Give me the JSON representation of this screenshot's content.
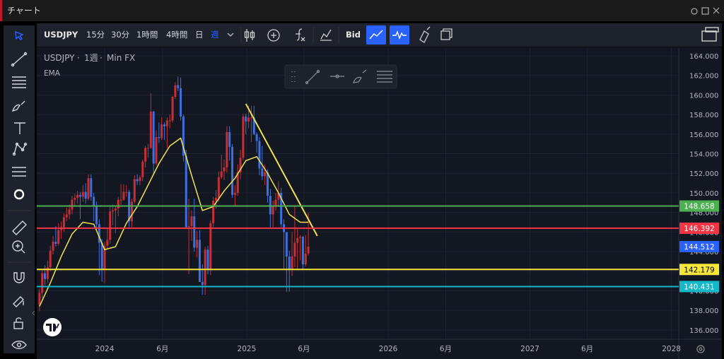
{
  "window": {
    "title": "チャート"
  },
  "toolbar": {
    "symbol": "USDJPY",
    "intervals": [
      "15分",
      "30分",
      "1時間",
      "4時間",
      "日",
      "週"
    ],
    "price_type": "Bid"
  },
  "chart_data": {
    "type": "candlestick",
    "symbol": "USDJPY",
    "interval": "1週",
    "source": "Min FX",
    "up_color": "#c62f36",
    "down_color": "#3d6fe0",
    "x": [
      -24,
      -23,
      -22,
      -21,
      -20,
      -19,
      -18,
      -17,
      -16,
      -15,
      -14,
      -13,
      -12,
      -11,
      -10,
      -9,
      -8,
      -7,
      -6,
      -5,
      -4,
      -3,
      -2,
      -1,
      0,
      1,
      2,
      3,
      4,
      5,
      6,
      7,
      8,
      9,
      10,
      11,
      12,
      13,
      14,
      15,
      16,
      17,
      18,
      19,
      20,
      21,
      22,
      23,
      24,
      25,
      26,
      27,
      28,
      29,
      30,
      31,
      32,
      33,
      34,
      35,
      36,
      37,
      38,
      39,
      40,
      41,
      42,
      43,
      44,
      45,
      46,
      47,
      48,
      49,
      50,
      51,
      52,
      53,
      54,
      55,
      56,
      57,
      58,
      59,
      60,
      61,
      62,
      63,
      64,
      65,
      66,
      67,
      68,
      69,
      70,
      71,
      72,
      73,
      74,
      75
    ],
    "candles": [
      [
        138.6,
        140.2,
        137.9,
        139.8
      ],
      [
        139.8,
        142.1,
        139.2,
        141.8
      ],
      [
        141.8,
        142.6,
        140.6,
        141.2
      ],
      [
        141.2,
        143.1,
        140.8,
        142.4
      ],
      [
        142.4,
        144.6,
        142.0,
        144.1
      ],
      [
        144.1,
        145.6,
        143.7,
        145.0
      ],
      [
        145.0,
        146.6,
        144.5,
        144.8
      ],
      [
        144.8,
        146.9,
        144.6,
        146.2
      ],
      [
        146.2,
        147.1,
        145.3,
        146.5
      ],
      [
        146.5,
        147.9,
        146.0,
        147.5
      ],
      [
        147.5,
        148.5,
        147.1,
        147.8
      ],
      [
        147.8,
        148.8,
        147.3,
        148.3
      ],
      [
        148.3,
        149.7,
        147.8,
        149.3
      ],
      [
        149.3,
        149.9,
        148.6,
        149.5
      ],
      [
        149.5,
        150.2,
        148.9,
        149.8
      ],
      [
        149.8,
        150.1,
        147.3,
        149.6
      ],
      [
        149.6,
        150.8,
        149.1,
        150.1
      ],
      [
        150.1,
        151.0,
        148.9,
        149.4
      ],
      [
        149.4,
        151.9,
        149.2,
        151.5
      ],
      [
        151.5,
        151.9,
        149.2,
        149.6
      ],
      [
        149.6,
        150.0,
        147.1,
        148.7
      ],
      [
        148.7,
        149.1,
        146.2,
        146.8
      ],
      [
        146.8,
        147.3,
        141.6,
        144.9
      ],
      [
        144.9,
        145.3,
        140.9,
        142.2
      ],
      [
        142.2,
        145.0,
        140.8,
        144.6
      ],
      [
        144.6,
        146.4,
        144.2,
        145.2
      ],
      [
        145.2,
        148.6,
        144.8,
        148.1
      ],
      [
        148.1,
        148.8,
        146.7,
        148.2
      ],
      [
        148.2,
        148.7,
        145.9,
        148.4
      ],
      [
        148.4,
        149.6,
        147.6,
        149.3
      ],
      [
        149.3,
        150.9,
        148.8,
        149.3
      ],
      [
        149.3,
        150.9,
        149.2,
        150.1
      ],
      [
        150.1,
        150.8,
        149.6,
        150.1
      ],
      [
        150.1,
        150.3,
        146.5,
        147.1
      ],
      [
        147.1,
        149.4,
        146.5,
        149.1
      ],
      [
        149.1,
        151.8,
        148.9,
        151.4
      ],
      [
        151.4,
        151.9,
        150.8,
        151.2
      ],
      [
        151.2,
        151.8,
        150.8,
        151.6
      ],
      [
        151.6,
        153.4,
        151.2,
        153.2
      ],
      [
        153.2,
        154.8,
        152.6,
        154.6
      ],
      [
        154.6,
        155.0,
        153.6,
        154.6
      ],
      [
        154.6,
        160.2,
        154.5,
        158.3
      ],
      [
        158.3,
        158.4,
        151.9,
        153.0
      ],
      [
        153.0,
        156.4,
        152.8,
        155.7
      ],
      [
        155.7,
        157.2,
        155.1,
        155.6
      ],
      [
        155.6,
        157.7,
        155.4,
        157.0
      ],
      [
        157.0,
        157.2,
        155.4,
        156.8
      ],
      [
        156.8,
        157.7,
        154.6,
        157.4
      ],
      [
        157.4,
        158.0,
        156.6,
        157.4
      ],
      [
        157.4,
        159.9,
        157.2,
        159.8
      ],
      [
        159.8,
        161.3,
        159.6,
        161.0
      ],
      [
        161.0,
        161.9,
        160.4,
        160.7
      ],
      [
        160.7,
        161.8,
        157.4,
        157.8
      ],
      [
        157.8,
        158.0,
        153.2,
        153.8
      ],
      [
        153.8,
        154.4,
        146.4,
        146.5
      ],
      [
        146.5,
        149.4,
        141.7,
        146.6
      ],
      [
        146.6,
        148.2,
        145.1,
        147.6
      ],
      [
        147.6,
        149.4,
        144.0,
        144.4
      ],
      [
        144.4,
        146.1,
        143.4,
        145.2
      ],
      [
        145.2,
        146.2,
        140.9,
        140.9
      ],
      [
        140.9,
        142.7,
        139.6,
        140.6
      ],
      [
        140.6,
        144.5,
        139.6,
        144.2
      ],
      [
        144.2,
        144.6,
        141.7,
        142.2
      ],
      [
        142.2,
        147.2,
        141.6,
        146.9
      ],
      [
        146.9,
        149.6,
        146.5,
        149.2
      ],
      [
        149.2,
        150.3,
        148.4,
        149.5
      ],
      [
        149.5,
        152.2,
        149.1,
        151.6
      ],
      [
        151.6,
        153.9,
        151.4,
        152.2
      ],
      [
        152.2,
        153.4,
        151.3,
        152.6
      ],
      [
        152.6,
        156.8,
        152.1,
        156.2
      ],
      [
        156.2,
        156.8,
        153.3,
        154.7
      ],
      [
        154.7,
        155.0,
        149.5,
        149.8
      ],
      [
        149.8,
        150.8,
        148.7,
        150.0
      ],
      [
        150.0,
        152.9,
        149.7,
        152.1
      ],
      [
        152.1,
        154.4,
        151.4,
        153.6
      ],
      [
        153.6,
        158.1,
        153.3,
        157.8
      ],
      [
        157.8,
        158.1,
        156.0,
        157.3
      ],
      [
        157.3,
        158.9,
        156.6,
        157.7
      ],
      [
        157.7,
        158.9,
        155.2,
        157.7
      ],
      [
        157.7,
        158.9,
        155.9,
        156.0
      ],
      [
        156.0,
        156.2,
        154.1,
        155.3
      ],
      [
        155.3,
        155.7,
        151.8,
        152.5
      ],
      [
        152.5,
        154.8,
        151.3,
        151.7
      ],
      [
        151.7,
        152.9,
        150.8,
        152.1
      ],
      [
        152.1,
        152.4,
        149.0,
        149.7
      ],
      [
        149.7,
        150.4,
        146.5,
        147.8
      ],
      [
        147.8,
        149.2,
        146.5,
        148.7
      ],
      [
        148.7,
        150.0,
        148.2,
        149.3
      ],
      [
        149.3,
        151.2,
        148.7,
        150.0
      ],
      [
        150.0,
        150.5,
        146.5,
        146.8
      ],
      [
        146.8,
        147.3,
        142.2,
        146.0
      ],
      [
        146.0,
        146.0,
        139.9,
        143.5
      ],
      [
        143.5,
        144.1,
        139.9,
        142.2
      ],
      [
        142.2,
        146.0,
        141.5,
        143.5
      ],
      [
        143.5,
        148.7,
        142.4,
        144.9
      ],
      [
        144.9,
        146.3,
        142.1,
        145.4
      ],
      [
        145.4,
        145.7,
        143.1,
        145.5
      ],
      [
        145.5,
        145.6,
        142.1,
        142.7
      ],
      [
        142.7,
        145.7,
        142.5,
        143.8
      ],
      [
        143.8,
        148.0,
        143.6,
        144.5
      ]
    ],
    "ema": {
      "name": "EMA",
      "color": "#f2e24d",
      "x": [
        -24,
        -20,
        -16,
        -12,
        -8,
        -4,
        0,
        4,
        8,
        12,
        16,
        20,
        24,
        28,
        32,
        36,
        40,
        44,
        48,
        52,
        56,
        60,
        64,
        68,
        72,
        75
      ],
      "values": [
        138.4,
        140.8,
        143.5,
        145.8,
        147.0,
        146.8,
        144.2,
        144.5,
        146.9,
        148.6,
        150.8,
        153.0,
        154.8,
        155.6,
        151.8,
        148.2,
        148.6,
        150.2,
        151.5,
        153.3,
        153.7,
        152.0,
        150.0,
        147.8,
        147.0,
        147.0
      ]
    },
    "trendline": {
      "color": "#f2e24d",
      "x": [
        52,
        78.3
      ],
      "values": [
        159.1,
        145.6
      ]
    },
    "levels": [
      {
        "value": 148.658,
        "color": "#4caf50"
      },
      {
        "value": 146.392,
        "color": "#f23645"
      },
      {
        "value": 142.179,
        "color": "#f5e63c"
      },
      {
        "value": 140.431,
        "color": "#13b8c8"
      }
    ],
    "last_price": {
      "value": 144.512,
      "color": "#2962ff"
    },
    "xlim": [
      -25,
      211.4
    ],
    "ylim": [
      135.05,
      164.87
    ],
    "grid": true,
    "xticks": [
      {
        "value": 0,
        "label": "2024"
      },
      {
        "value": 21.3,
        "label": "6月"
      },
      {
        "value": 52.3,
        "label": "2025"
      },
      {
        "value": 73.4,
        "label": "6月"
      },
      {
        "value": 104.4,
        "label": "2026"
      },
      {
        "value": 125.6,
        "label": "6月"
      },
      {
        "value": 156.6,
        "label": "2027"
      },
      {
        "value": 177.7,
        "label": "6月"
      },
      {
        "value": 208.7,
        "label": "2028"
      }
    ],
    "yticks": [
      {
        "value": 136,
        "label": "136.000"
      },
      {
        "value": 138,
        "label": "138.000"
      },
      {
        "value": 140,
        "label": "140.000"
      },
      {
        "value": 142,
        "label": "142.000"
      },
      {
        "value": 144,
        "label": "144.000"
      },
      {
        "value": 146,
        "label": "146.000"
      },
      {
        "value": 148,
        "label": "148.000"
      },
      {
        "value": 150,
        "label": "150.000"
      },
      {
        "value": 152,
        "label": "152.000"
      },
      {
        "value": 154,
        "label": "154.000"
      },
      {
        "value": 156,
        "label": "156.000"
      },
      {
        "value": 158,
        "label": "158.000"
      },
      {
        "value": 160,
        "label": "160.000"
      },
      {
        "value": 162,
        "label": "162.000"
      },
      {
        "value": 164,
        "label": "164.000"
      }
    ]
  }
}
